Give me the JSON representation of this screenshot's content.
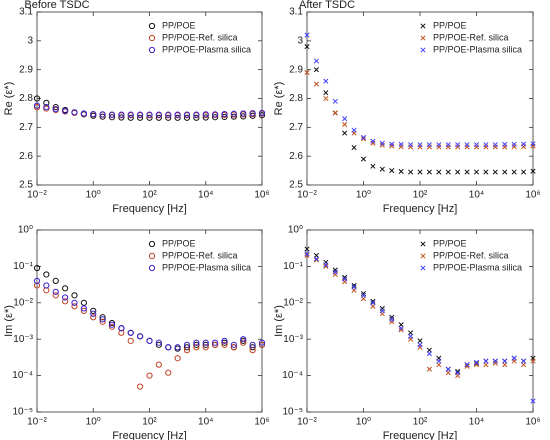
{
  "chart_data": [
    {
      "type": "scatter",
      "title": "Before TSDC",
      "xlabel": "Frequency [Hz]",
      "ylabel": "Re (ε*)",
      "xscale": "log",
      "yscale": "linear",
      "marker": "circle",
      "legend": "upper right",
      "xlim": [
        0.01,
        1000000
      ],
      "xticks": [
        {
          "value": 0.01,
          "label": "10⁻²"
        },
        {
          "value": 1,
          "label": "10⁰"
        },
        {
          "value": 100,
          "label": "10²"
        },
        {
          "value": 10000,
          "label": "10⁴"
        },
        {
          "value": 1000000,
          "label": "10⁶"
        }
      ],
      "ylim": [
        2.5,
        3.1
      ],
      "yticks": [
        2.5,
        2.6,
        2.7,
        2.8,
        2.9,
        3,
        3.1
      ],
      "x": [
        0.01,
        0.0215,
        0.0464,
        0.1,
        0.215,
        0.464,
        1,
        2.15,
        4.64,
        10,
        21.5,
        46.4,
        100,
        215,
        464,
        1000,
        2150,
        4640,
        10000,
        21500,
        46400,
        100000,
        215000,
        464000,
        1000000
      ],
      "series": [
        {
          "name": "PP/POE",
          "color": "#111111",
          "values": [
            2.8,
            2.785,
            2.77,
            2.76,
            2.752,
            2.745,
            2.74,
            2.737,
            2.735,
            2.734,
            2.733,
            2.733,
            2.733,
            2.733,
            2.733,
            2.733,
            2.733,
            2.733,
            2.734,
            2.735,
            2.736,
            2.737,
            2.738,
            2.74,
            2.742
          ]
        },
        {
          "name": "PP/POE-Ref. silica",
          "color": "#c04020",
          "values": [
            2.77,
            2.765,
            2.76,
            2.755,
            2.75,
            2.747,
            2.745,
            2.744,
            2.743,
            2.742,
            2.742,
            2.742,
            2.742,
            2.742,
            2.742,
            2.742,
            2.742,
            2.742,
            2.742,
            2.743,
            2.743,
            2.744,
            2.745,
            2.746,
            2.748
          ]
        },
        {
          "name": "PP/POE-Plasma silica",
          "color": "#3a20d0",
          "values": [
            2.775,
            2.77,
            2.763,
            2.757,
            2.752,
            2.748,
            2.746,
            2.745,
            2.744,
            2.744,
            2.744,
            2.744,
            2.744,
            2.744,
            2.744,
            2.744,
            2.744,
            2.744,
            2.745,
            2.745,
            2.746,
            2.747,
            2.748,
            2.749,
            2.75
          ]
        }
      ]
    },
    {
      "type": "scatter",
      "title": "After TSDC",
      "xlabel": "Frequency [Hz]",
      "ylabel": "Re (ε*)",
      "xscale": "log",
      "yscale": "linear",
      "marker": "x",
      "legend": "upper right",
      "xlim": [
        0.01,
        1000000
      ],
      "xticks": [
        {
          "value": 0.01,
          "label": "10⁻²"
        },
        {
          "value": 1,
          "label": "10⁰"
        },
        {
          "value": 100,
          "label": "10²"
        },
        {
          "value": 10000,
          "label": "10⁴"
        },
        {
          "value": 1000000,
          "label": "10⁶"
        }
      ],
      "ylim": [
        2.5,
        3.1
      ],
      "yticks": [
        2.5,
        2.6,
        2.7,
        2.8,
        2.9,
        3,
        3.1
      ],
      "x": [
        0.01,
        0.0215,
        0.0464,
        0.1,
        0.215,
        0.464,
        1,
        2.15,
        4.64,
        10,
        21.5,
        46.4,
        100,
        215,
        464,
        1000,
        2150,
        4640,
        10000,
        21500,
        46400,
        100000,
        215000,
        464000,
        1000000
      ],
      "series": [
        {
          "name": "PP/POE",
          "color": "#111111",
          "values": [
            2.98,
            2.9,
            2.82,
            2.75,
            2.68,
            2.63,
            2.59,
            2.565,
            2.555,
            2.55,
            2.547,
            2.545,
            2.545,
            2.545,
            2.545,
            2.545,
            2.545,
            2.545,
            2.545,
            2.545,
            2.545,
            2.545,
            2.545,
            2.545,
            2.548
          ]
        },
        {
          "name": "PP/POE-Ref. silica",
          "color": "#c0501c",
          "values": [
            2.89,
            2.85,
            2.8,
            2.75,
            2.71,
            2.68,
            2.66,
            2.645,
            2.638,
            2.635,
            2.633,
            2.632,
            2.632,
            2.632,
            2.632,
            2.632,
            2.632,
            2.632,
            2.632,
            2.632,
            2.632,
            2.632,
            2.633,
            2.633,
            2.635
          ]
        },
        {
          "name": "PP/POE-Plasma silica",
          "color": "#4040ff",
          "values": [
            3.02,
            2.93,
            2.86,
            2.79,
            2.73,
            2.69,
            2.665,
            2.652,
            2.645,
            2.642,
            2.641,
            2.64,
            2.64,
            2.64,
            2.64,
            2.64,
            2.64,
            2.64,
            2.64,
            2.64,
            2.64,
            2.641,
            2.641,
            2.642,
            2.643
          ]
        }
      ]
    },
    {
      "type": "scatter",
      "xlabel": "Frequency [Hz]",
      "ylabel": "Im (ε*)",
      "xscale": "log",
      "yscale": "log",
      "marker": "circle",
      "legend": "upper right",
      "xlim": [
        0.01,
        1000000
      ],
      "xticks": [
        {
          "value": 0.01,
          "label": "10⁻²"
        },
        {
          "value": 1,
          "label": "10⁰"
        },
        {
          "value": 100,
          "label": "10²"
        },
        {
          "value": 10000,
          "label": "10⁴"
        },
        {
          "value": 1000000,
          "label": "10⁶"
        }
      ],
      "ylim": [
        1e-05,
        1
      ],
      "yticks": [
        {
          "value": 1e-05,
          "label": "10⁻⁵"
        },
        {
          "value": 0.0001,
          "label": "10⁻⁴"
        },
        {
          "value": 0.001,
          "label": "10⁻³"
        },
        {
          "value": 0.01,
          "label": "10⁻²"
        },
        {
          "value": 0.1,
          "label": "10⁻¹"
        },
        {
          "value": 1,
          "label": "10⁰"
        }
      ],
      "x": [
        0.01,
        0.0215,
        0.0464,
        0.1,
        0.215,
        0.464,
        1,
        2.15,
        4.64,
        10,
        21.5,
        46.4,
        100,
        215,
        464,
        1000,
        2150,
        4640,
        10000,
        21500,
        46400,
        100000,
        215000,
        464000,
        1000000
      ],
      "series": [
        {
          "name": "PP/POE",
          "color": "#111111",
          "values": [
            0.09,
            0.06,
            0.04,
            0.025,
            0.016,
            0.01,
            0.006,
            0.004,
            0.0028,
            0.002,
            0.0015,
            0.0012,
            0.0009,
            0.0007,
            0.0006,
            0.00055,
            0.0006,
            0.0007,
            0.0007,
            0.0007,
            0.0008,
            0.0006,
            0.0009,
            0.0006,
            0.0007
          ]
        },
        {
          "name": "PP/POE-Ref. silica",
          "color": "#c04020",
          "values": [
            0.03,
            0.022,
            0.016,
            0.011,
            0.008,
            0.006,
            0.004,
            0.003,
            0.0022,
            0.0015,
            0.0009,
            5e-05,
            0.0001,
            0.0002,
            0.00012,
            0.0003,
            0.0005,
            0.0006,
            0.0006,
            0.0007,
            0.0007,
            0.0006,
            0.0008,
            0.0005,
            0.0007
          ]
        },
        {
          "name": "PP/POE-Plasma silica",
          "color": "#3a20d0",
          "values": [
            0.04,
            0.03,
            0.02,
            0.014,
            0.01,
            0.007,
            0.005,
            0.0035,
            0.0025,
            0.002,
            0.0015,
            0.0012,
            0.0009,
            0.0008,
            0.0006,
            0.0006,
            0.0007,
            0.0008,
            0.0008,
            0.0008,
            0.0009,
            0.0007,
            0.001,
            0.0007,
            0.0008
          ]
        }
      ]
    },
    {
      "type": "scatter",
      "xlabel": "Frequency [Hz]",
      "ylabel": "Im (ε*)",
      "xscale": "log",
      "yscale": "log",
      "marker": "x",
      "legend": "upper right",
      "xlim": [
        0.01,
        1000000
      ],
      "xticks": [
        {
          "value": 0.01,
          "label": "10⁻²"
        },
        {
          "value": 1,
          "label": "10⁰"
        },
        {
          "value": 100,
          "label": "10²"
        },
        {
          "value": 10000,
          "label": "10⁴"
        },
        {
          "value": 1000000,
          "label": "10⁶"
        }
      ],
      "ylim": [
        1e-05,
        1
      ],
      "yticks": [
        {
          "value": 1e-05,
          "label": "10⁻⁵"
        },
        {
          "value": 0.0001,
          "label": "10⁻⁴"
        },
        {
          "value": 0.001,
          "label": "10⁻³"
        },
        {
          "value": 0.01,
          "label": "10⁻²"
        },
        {
          "value": 0.1,
          "label": "10⁻¹"
        },
        {
          "value": 1,
          "label": "10⁰"
        }
      ],
      "x": [
        0.01,
        0.0215,
        0.0464,
        0.1,
        0.215,
        0.464,
        1,
        2.15,
        4.64,
        10,
        21.5,
        46.4,
        100,
        215,
        464,
        1000,
        2150,
        4640,
        10000,
        21500,
        46400,
        100000,
        215000,
        464000,
        1000000
      ],
      "series": [
        {
          "name": "PP/POE",
          "color": "#111111",
          "values": [
            0.3,
            0.2,
            0.13,
            0.08,
            0.05,
            0.03,
            0.018,
            0.011,
            0.007,
            0.004,
            0.0025,
            0.0015,
            0.0009,
            0.0005,
            0.0003,
            0.00015,
            0.00013,
            0.0002,
            0.00022,
            0.00025,
            0.00025,
            0.00025,
            0.0003,
            0.00025,
            0.0003
          ]
        },
        {
          "name": "PP/POE-Ref. silica",
          "color": "#c0501c",
          "values": [
            0.2,
            0.15,
            0.1,
            0.06,
            0.038,
            0.022,
            0.013,
            0.008,
            0.005,
            0.003,
            0.0018,
            0.001,
            0.0006,
            0.00015,
            0.0002,
            0.00012,
            0.0001,
            0.00018,
            0.0002,
            0.0002,
            0.00022,
            0.0002,
            0.00025,
            0.0002,
            0.00025
          ]
        },
        {
          "name": "PP/POE-Plasma silica",
          "color": "#4040ff",
          "values": [
            0.22,
            0.16,
            0.11,
            0.07,
            0.045,
            0.027,
            0.016,
            0.01,
            0.006,
            0.0035,
            0.002,
            0.0012,
            0.0007,
            0.0004,
            0.00025,
            0.00015,
            0.00012,
            0.0002,
            0.00023,
            0.00025,
            0.00025,
            0.00025,
            0.0003,
            0.00025,
            2e-05
          ]
        }
      ]
    }
  ]
}
